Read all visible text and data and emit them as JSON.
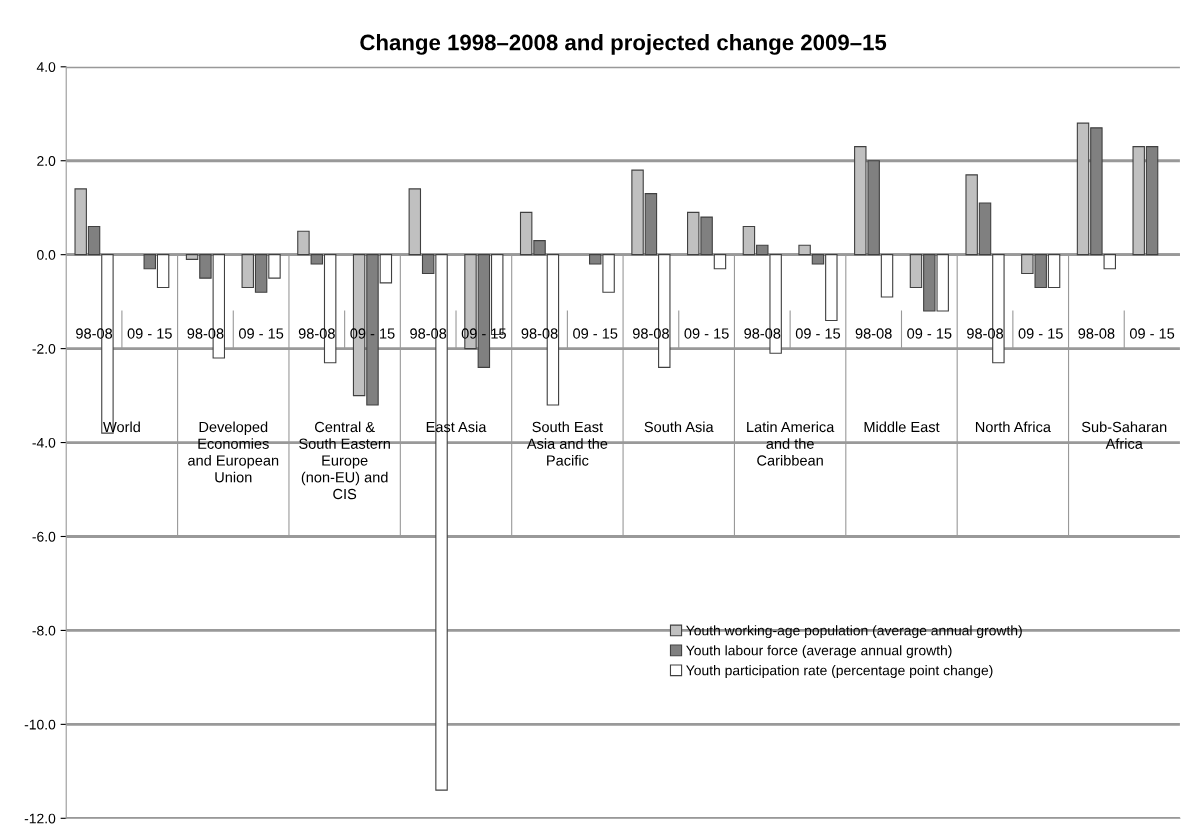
{
  "chart_data": {
    "type": "bar",
    "title": "Change 1998–2008 and projected change 2009–15",
    "categories": [
      "98-08",
      "09 - 15",
      "98-08",
      "09 - 15",
      "98-08",
      "09 - 15",
      "98-08",
      "09 - 15",
      "98-08",
      "09 - 15",
      "98-08",
      "09 - 15",
      "98-08",
      "09 - 15",
      "98-08",
      "09 - 15",
      "98-08",
      "09 - 15",
      "98-08",
      "09 - 15"
    ],
    "annotations": [
      "World",
      "Developed Economies and European Union",
      "Central & South Eastern Europe (non-EU) and CIS",
      "East Asia",
      "South East Asia and the Pacific",
      "South Asia",
      "Latin America and the Caribbean",
      "Middle East",
      "North Africa",
      "Sub-Saharan Africa"
    ],
    "series": [
      {
        "name": "Youth working-age population (average annual growth)",
        "color": "#c0c0c0",
        "values": [
          1.4,
          0.0,
          -0.1,
          -0.7,
          0.5,
          -3.0,
          1.4,
          -2.0,
          0.9,
          0.0,
          1.8,
          0.9,
          0.6,
          0.2,
          2.3,
          -0.7,
          1.7,
          -0.4,
          2.8,
          2.3
        ]
      },
      {
        "name": "Youth labour force (average annual growth)",
        "color": "#808080",
        "values": [
          0.6,
          -0.3,
          -0.5,
          -0.8,
          -0.2,
          -3.2,
          -0.4,
          -2.4,
          0.3,
          -0.2,
          1.3,
          0.8,
          0.2,
          -0.2,
          2.0,
          -1.2,
          1.1,
          -0.7,
          2.7,
          2.3
        ]
      },
      {
        "name": "Youth participation rate (percentage point change)",
        "color": "#ffffff",
        "values": [
          -3.8,
          -0.7,
          -2.2,
          -0.5,
          -2.3,
          -0.6,
          -11.4,
          -1.7,
          -3.2,
          -0.8,
          -2.4,
          -0.3,
          -2.1,
          -1.4,
          -0.9,
          -1.2,
          -2.3,
          -0.7,
          -0.3,
          0.0
        ]
      }
    ],
    "ylim": [
      -12,
      4
    ],
    "yticks": [
      {
        "value": -12,
        "label": "-12.0"
      },
      {
        "value": -10,
        "label": "-10.0"
      },
      {
        "value": -8,
        "label": "-8.0"
      },
      {
        "value": -6,
        "label": "-6.0"
      },
      {
        "value": -4,
        "label": "-4.0"
      },
      {
        "value": -2,
        "label": "-2.0"
      },
      {
        "value": 0,
        "label": "0.0"
      },
      {
        "value": 2,
        "label": "2.0"
      },
      {
        "value": 4,
        "label": "4.0"
      }
    ],
    "grid": "y",
    "legend": "bottom right"
  }
}
